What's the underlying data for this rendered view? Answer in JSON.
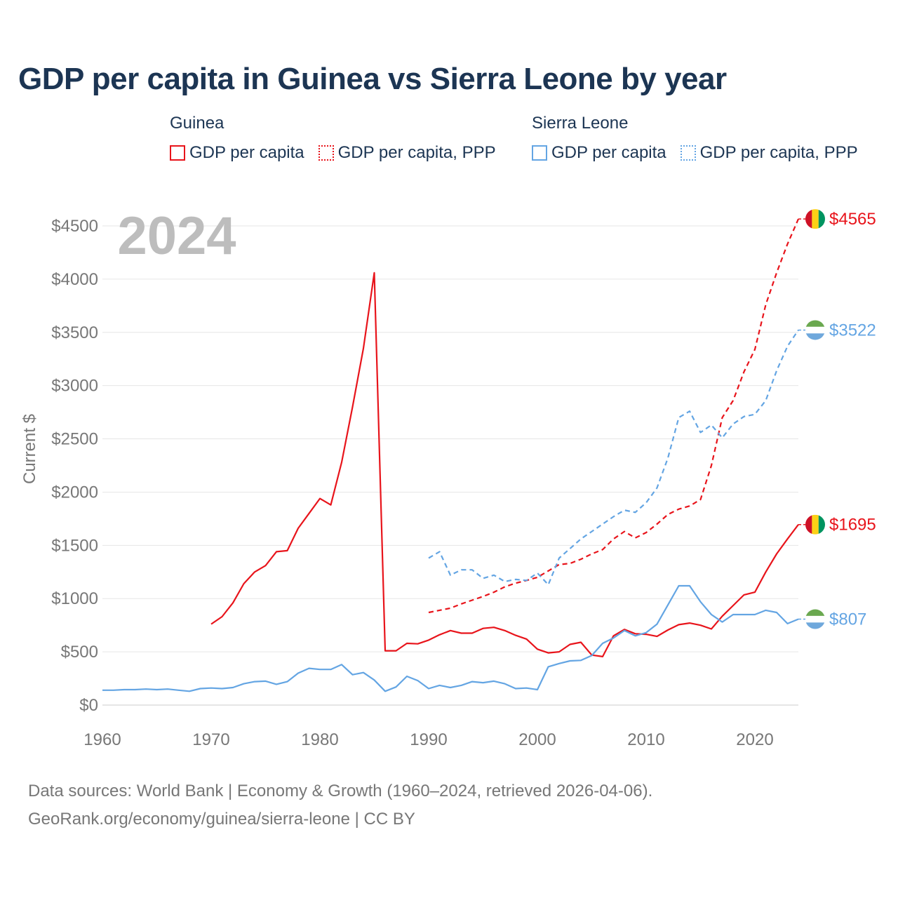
{
  "title": "GDP per capita in Guinea vs Sierra Leone by year",
  "legend": {
    "guinea_label": "Guinea",
    "sierra_label": "Sierra Leone",
    "gdp_label": "GDP per capita",
    "ppp_label": "GDP per capita, PPP"
  },
  "footer": {
    "line1": "Data sources: World Bank | Economy & Growth (1960–2024, retrieved 2026-04-06).",
    "line2": "GeoRank.org/economy/guinea/sierra-leone | CC BY"
  },
  "colors": {
    "guinea": "#e8141b",
    "sierra": "#64a5e3",
    "title": "#1c3553"
  },
  "chart_data": {
    "type": "line",
    "title": "GDP per capita in Guinea vs Sierra Leone by year",
    "year_label": "2024",
    "ylabel": "Current $",
    "xlabel": "",
    "xlim": [
      1960,
      2024
    ],
    "ylim": [
      0,
      4500
    ],
    "xticks": [
      1960,
      1970,
      1980,
      1990,
      2000,
      2010,
      2020
    ],
    "yticks": [
      0,
      500,
      1000,
      1500,
      2000,
      2500,
      3000,
      3500,
      4000,
      4500
    ],
    "ytick_labels": [
      "$0",
      "$500",
      "$1000",
      "$1500",
      "$2000",
      "$2500",
      "$3000",
      "$3500",
      "$4000",
      "$4500"
    ],
    "grid": true,
    "series": [
      {
        "name": "Guinea GDP per capita",
        "country": "Guinea",
        "style": "solid",
        "color": "#e8141b",
        "end_label": "$1695",
        "x": [
          1970,
          1971,
          1972,
          1973,
          1974,
          1975,
          1976,
          1977,
          1978,
          1979,
          1980,
          1981,
          1982,
          1983,
          1984,
          1985,
          1986,
          1987,
          1988,
          1989,
          1990,
          1991,
          1992,
          1993,
          1994,
          1995,
          1996,
          1997,
          1998,
          1999,
          2000,
          2001,
          2002,
          2003,
          2004,
          2005,
          2006,
          2007,
          2008,
          2009,
          2010,
          2011,
          2012,
          2013,
          2014,
          2015,
          2016,
          2017,
          2018,
          2019,
          2020,
          2021,
          2022,
          2023,
          2024
        ],
        "values": [
          760,
          830,
          960,
          1140,
          1250,
          1310,
          1440,
          1450,
          1660,
          1800,
          1940,
          1880,
          2280,
          2800,
          3350,
          4060,
          510,
          510,
          580,
          575,
          610,
          660,
          700,
          675,
          675,
          720,
          730,
          700,
          655,
          620,
          525,
          490,
          500,
          570,
          590,
          470,
          455,
          650,
          710,
          670,
          665,
          645,
          705,
          755,
          770,
          750,
          715,
          835,
          935,
          1035,
          1060,
          1250,
          1420,
          1560,
          1695
        ]
      },
      {
        "name": "Guinea GDP per capita, PPP",
        "country": "Guinea",
        "style": "dashed",
        "color": "#e8141b",
        "end_label": "$4565",
        "x": [
          1990,
          1991,
          1992,
          1993,
          1994,
          1995,
          1996,
          1997,
          1998,
          1999,
          2000,
          2001,
          2002,
          2003,
          2004,
          2005,
          2006,
          2007,
          2008,
          2009,
          2010,
          2011,
          2012,
          2013,
          2014,
          2015,
          2016,
          2017,
          2018,
          2019,
          2020,
          2021,
          2022,
          2023,
          2024
        ],
        "values": [
          870,
          890,
          910,
          950,
          985,
          1020,
          1060,
          1110,
          1145,
          1170,
          1200,
          1260,
          1320,
          1330,
          1370,
          1420,
          1460,
          1560,
          1630,
          1570,
          1620,
          1700,
          1790,
          1840,
          1870,
          1930,
          2250,
          2700,
          2860,
          3130,
          3340,
          3760,
          4060,
          4330,
          4565
        ]
      },
      {
        "name": "Sierra Leone GDP per capita",
        "country": "Sierra Leone",
        "style": "solid",
        "color": "#64a5e3",
        "end_label": "$807",
        "x": [
          1960,
          1961,
          1962,
          1963,
          1964,
          1965,
          1966,
          1967,
          1968,
          1969,
          1970,
          1971,
          1972,
          1973,
          1974,
          1975,
          1976,
          1977,
          1978,
          1979,
          1980,
          1981,
          1982,
          1983,
          1984,
          1985,
          1986,
          1987,
          1988,
          1989,
          1990,
          1991,
          1992,
          1993,
          1994,
          1995,
          1996,
          1997,
          1998,
          1999,
          2000,
          2001,
          2002,
          2003,
          2004,
          2005,
          2006,
          2007,
          2008,
          2009,
          2010,
          2011,
          2012,
          2013,
          2014,
          2015,
          2016,
          2017,
          2018,
          2019,
          2020,
          2021,
          2022,
          2023,
          2024
        ],
        "values": [
          140,
          140,
          145,
          145,
          150,
          145,
          150,
          140,
          130,
          155,
          160,
          155,
          165,
          200,
          220,
          225,
          195,
          220,
          300,
          345,
          335,
          335,
          380,
          285,
          305,
          235,
          130,
          170,
          270,
          230,
          155,
          185,
          165,
          185,
          220,
          210,
          225,
          200,
          155,
          160,
          145,
          360,
          390,
          415,
          420,
          465,
          580,
          630,
          700,
          650,
          680,
          760,
          940,
          1120,
          1120,
          970,
          850,
          780,
          850,
          850,
          850,
          890,
          870,
          765,
          807
        ]
      },
      {
        "name": "Sierra Leone GDP per capita, PPP",
        "country": "Sierra Leone",
        "style": "dashed",
        "color": "#64a5e3",
        "end_label": "$3522",
        "x": [
          1990,
          1991,
          1992,
          1993,
          1994,
          1995,
          1996,
          1997,
          1998,
          1999,
          2000,
          2001,
          2002,
          2003,
          2004,
          2005,
          2006,
          2007,
          2008,
          2009,
          2010,
          2011,
          2012,
          2013,
          2014,
          2015,
          2016,
          2017,
          2018,
          2019,
          2020,
          2021,
          2022,
          2023,
          2024
        ],
        "values": [
          1380,
          1440,
          1220,
          1270,
          1270,
          1190,
          1220,
          1160,
          1180,
          1170,
          1240,
          1130,
          1380,
          1470,
          1560,
          1630,
          1700,
          1770,
          1830,
          1810,
          1900,
          2040,
          2320,
          2700,
          2760,
          2560,
          2630,
          2510,
          2640,
          2710,
          2730,
          2860,
          3140,
          3370,
          3522
        ]
      }
    ]
  }
}
